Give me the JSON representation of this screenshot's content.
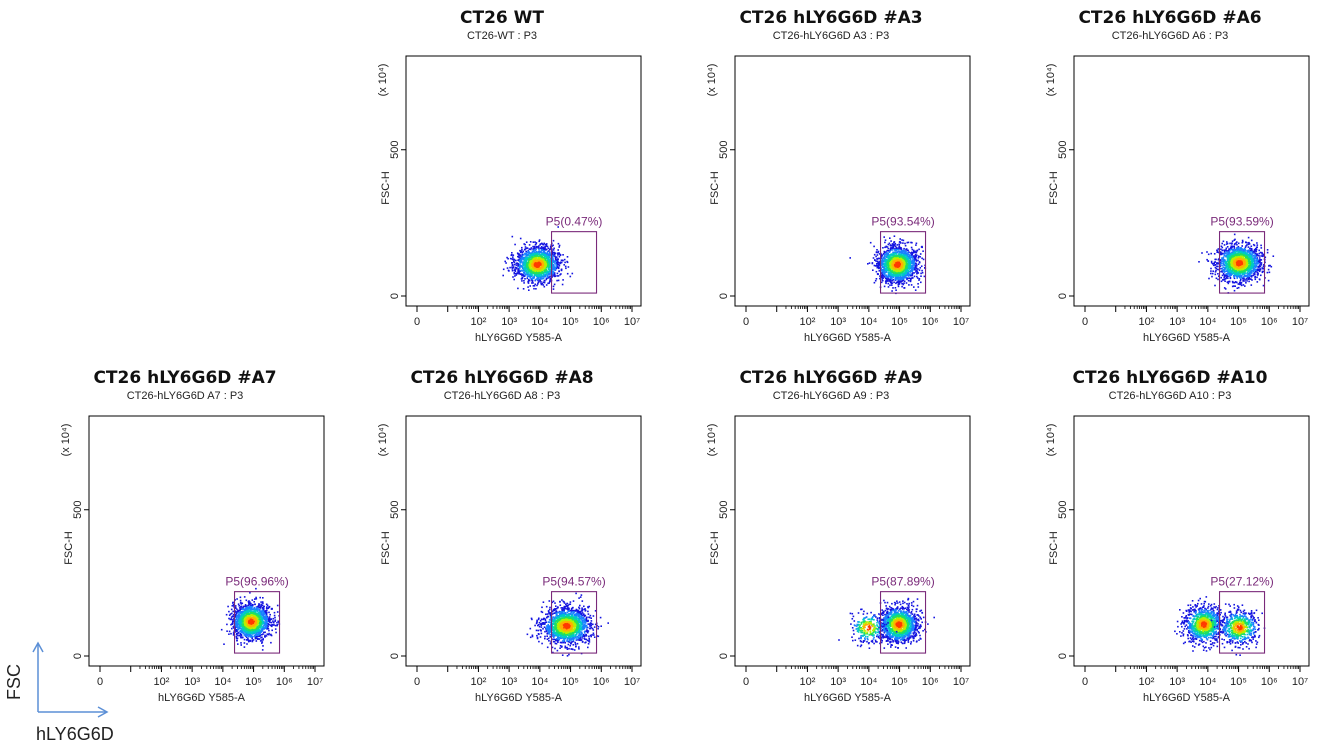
{
  "figure": {
    "corner_axes": {
      "y_label": "FSC",
      "x_label": "hLY6G6D",
      "arrow_color": "#5b8fd6"
    }
  },
  "panels": [
    {
      "title": "CT26 WT",
      "subtitle": "CT26-WT : P3",
      "gate_label": "P5(0.47%)"
    },
    {
      "title": "CT26 hLY6G6D #A3",
      "subtitle": "CT26-hLY6G6D A3 : P3",
      "gate_label": "P5(93.54%)"
    },
    {
      "title": "CT26 hLY6G6D #A6",
      "subtitle": "CT26-hLY6G6D A6 : P3",
      "gate_label": "P5(93.59%)"
    },
    {
      "title": "CT26 hLY6G6D #A7",
      "subtitle": "CT26-hLY6G6D A7 : P3",
      "gate_label": "P5(96.96%)"
    },
    {
      "title": "CT26 hLY6G6D #A8",
      "subtitle": "CT26-hLY6G6D A8 : P3",
      "gate_label": "P5(94.57%)"
    },
    {
      "title": "CT26 hLY6G6D #A9",
      "subtitle": "CT26-hLY6G6D A9 : P3",
      "gate_label": "P5(87.89%)"
    },
    {
      "title": "CT26 hLY6G6D #A10",
      "subtitle": "CT26-hLY6G6D A10 : P3",
      "gate_label": "P5(27.12%)"
    }
  ],
  "chart_data": [
    {
      "type": "scatter",
      "title": "CT26 WT",
      "subtitle": "CT26-WT : P3",
      "xlabel": "hLY6G6D Y585-A",
      "ylabel": "FSC-H",
      "y_multiplier": "(x 10⁴)",
      "x_scale": "biexponential-log",
      "x_ticks": [
        "0",
        "10²",
        "10³",
        "10⁴",
        "10⁵",
        "10⁶",
        "10⁷"
      ],
      "y_ticks": [
        0,
        500
      ],
      "ylim": [
        0,
        800
      ],
      "gate": {
        "name": "P5",
        "percent": 0.47,
        "x_range": [
          24000,
          700000
        ],
        "y_range": [
          10,
          220
        ]
      },
      "populations": [
        {
          "x_center": 8000,
          "x_spread_decades": 0.35,
          "y_center": 110,
          "y_spread": 30,
          "weight": 1.0
        }
      ]
    },
    {
      "type": "scatter",
      "title": "CT26 hLY6G6D #A3",
      "subtitle": "CT26-hLY6G6D A3 : P3",
      "xlabel": "hLY6G6D Y585-A",
      "ylabel": "FSC-H",
      "y_multiplier": "(x 10⁴)",
      "x_scale": "biexponential-log",
      "x_ticks": [
        "0",
        "10²",
        "10³",
        "10⁴",
        "10⁵",
        "10⁶",
        "10⁷"
      ],
      "y_ticks": [
        0,
        500
      ],
      "ylim": [
        0,
        800
      ],
      "gate": {
        "name": "P5",
        "percent": 93.54,
        "x_range": [
          24000,
          700000
        ],
        "y_range": [
          10,
          220
        ]
      },
      "populations": [
        {
          "x_center": 80000,
          "x_spread_decades": 0.32,
          "y_center": 110,
          "y_spread": 30,
          "weight": 1.0
        }
      ]
    },
    {
      "type": "scatter",
      "title": "CT26 hLY6G6D #A6",
      "subtitle": "CT26-hLY6G6D A6 : P3",
      "xlabel": "hLY6G6D Y585-A",
      "ylabel": "FSC-H",
      "y_multiplier": "(x 10⁴)",
      "x_scale": "biexponential-log",
      "x_ticks": [
        "0",
        "10²",
        "10³",
        "10⁴",
        "10⁵",
        "10⁶",
        "10⁷"
      ],
      "y_ticks": [
        0,
        500
      ],
      "ylim": [
        0,
        800
      ],
      "gate": {
        "name": "P5",
        "percent": 93.59,
        "x_range": [
          24000,
          700000
        ],
        "y_range": [
          10,
          220
        ]
      },
      "populations": [
        {
          "x_center": 100000,
          "x_spread_decades": 0.35,
          "y_center": 115,
          "y_spread": 30,
          "weight": 1.0
        }
      ]
    },
    {
      "type": "scatter",
      "title": "CT26 hLY6G6D #A7",
      "subtitle": "CT26-hLY6G6D A7 : P3",
      "xlabel": "hLY6G6D Y585-A",
      "ylabel": "FSC-H",
      "y_multiplier": "(x 10⁴)",
      "x_scale": "biexponential-log",
      "x_ticks": [
        "0",
        "10²",
        "10³",
        "10⁴",
        "10⁵",
        "10⁶",
        "10⁷"
      ],
      "y_ticks": [
        0,
        500
      ],
      "ylim": [
        0,
        800
      ],
      "gate": {
        "name": "P5",
        "percent": 96.96,
        "x_range": [
          24000,
          700000
        ],
        "y_range": [
          10,
          220
        ]
      },
      "populations": [
        {
          "x_center": 80000,
          "x_spread_decades": 0.3,
          "y_center": 120,
          "y_spread": 30,
          "weight": 1.0
        }
      ]
    },
    {
      "type": "scatter",
      "title": "CT26 hLY6G6D #A8",
      "subtitle": "CT26-hLY6G6D A8 : P3",
      "xlabel": "hLY6G6D Y585-A",
      "ylabel": "FSC-H",
      "y_multiplier": "(x 10⁴)",
      "x_scale": "biexponential-log",
      "x_ticks": [
        "0",
        "10²",
        "10³",
        "10⁴",
        "10⁵",
        "10⁶",
        "10⁷"
      ],
      "y_ticks": [
        0,
        500
      ],
      "ylim": [
        0,
        800
      ],
      "gate": {
        "name": "P5",
        "percent": 94.57,
        "x_range": [
          24000,
          700000
        ],
        "y_range": [
          10,
          220
        ]
      },
      "populations": [
        {
          "x_center": 70000,
          "x_spread_decades": 0.38,
          "y_center": 105,
          "y_spread": 30,
          "weight": 1.0
        }
      ]
    },
    {
      "type": "scatter",
      "title": "CT26 hLY6G6D #A9",
      "subtitle": "CT26-hLY6G6D A9 : P3",
      "xlabel": "hLY6G6D Y585-A",
      "ylabel": "FSC-H",
      "y_multiplier": "(x 10⁴)",
      "x_scale": "biexponential-log",
      "x_ticks": [
        "0",
        "10²",
        "10³",
        "10⁴",
        "10⁵",
        "10⁶",
        "10⁷"
      ],
      "y_ticks": [
        0,
        500
      ],
      "ylim": [
        0,
        800
      ],
      "gate": {
        "name": "P5",
        "percent": 87.89,
        "x_range": [
          24000,
          700000
        ],
        "y_range": [
          10,
          220
        ]
      },
      "populations": [
        {
          "x_center": 90000,
          "x_spread_decades": 0.3,
          "y_center": 110,
          "y_spread": 30,
          "weight": 0.85
        },
        {
          "x_center": 9000,
          "x_spread_decades": 0.28,
          "y_center": 100,
          "y_spread": 25,
          "weight": 0.15
        }
      ]
    },
    {
      "type": "scatter",
      "title": "CT26 hLY6G6D #A10",
      "subtitle": "CT26-hLY6G6D A10 : P3",
      "xlabel": "hLY6G6D Y585-A",
      "ylabel": "FSC-H",
      "y_multiplier": "(x 10⁴)",
      "x_scale": "biexponential-log",
      "x_ticks": [
        "0",
        "10²",
        "10³",
        "10⁴",
        "10⁵",
        "10⁶",
        "10⁷"
      ],
      "y_ticks": [
        0,
        500
      ],
      "ylim": [
        0,
        800
      ],
      "gate": {
        "name": "P5",
        "percent": 27.12,
        "x_range": [
          24000,
          700000
        ],
        "y_range": [
          10,
          220
        ]
      },
      "populations": [
        {
          "x_center": 7000,
          "x_spread_decades": 0.3,
          "y_center": 110,
          "y_spread": 30,
          "weight": 0.62
        },
        {
          "x_center": 100000,
          "x_spread_decades": 0.3,
          "y_center": 100,
          "y_spread": 28,
          "weight": 0.38
        }
      ]
    }
  ]
}
